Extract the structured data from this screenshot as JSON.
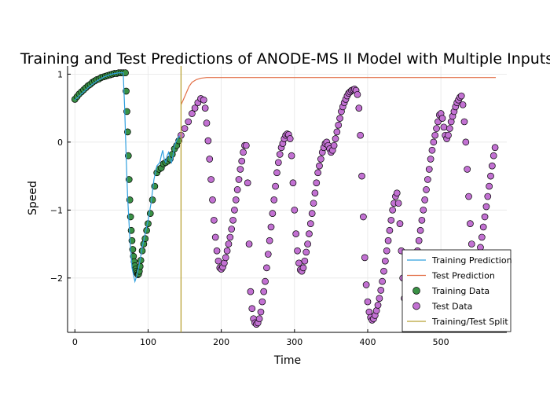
{
  "chart_data": {
    "type": "scatter",
    "title": "Training and Test Predictions of ANODE-MS II Model with Multiple Inputs",
    "xlabel": "Time",
    "ylabel": "Speed",
    "xlim": [
      -10,
      590
    ],
    "ylim": [
      -2.8,
      1.12
    ],
    "xticks": [
      0,
      100,
      200,
      300,
      400,
      500
    ],
    "yticks": [
      -2,
      -1,
      0,
      1
    ],
    "xtick_labels": [
      "0",
      "100",
      "200",
      "300",
      "400",
      "500"
    ],
    "ytick_labels": [
      "−2",
      "−1",
      "0",
      "1"
    ],
    "grid": true,
    "legend_position": "bottom-right",
    "colors": {
      "training_prediction": "#2f9fde",
      "test_prediction": "#e26f46",
      "training_data": "#3a9145",
      "test_data": "#c271d2",
      "split": "#b8a234"
    },
    "legend": [
      {
        "key": "training_prediction",
        "label": "Training Prediction",
        "kind": "line"
      },
      {
        "key": "test_prediction",
        "label": "Test Prediction",
        "kind": "line"
      },
      {
        "key": "training_data",
        "label": "Training Data",
        "kind": "marker"
      },
      {
        "key": "test_data",
        "label": "Test Data",
        "kind": "marker"
      },
      {
        "key": "split",
        "label": "Training/Test Split",
        "kind": "line"
      }
    ],
    "split_x": 145,
    "training_prediction": {
      "x": [
        0,
        10,
        20,
        30,
        40,
        50,
        60,
        66,
        68,
        70,
        72,
        75,
        78,
        82,
        85,
        88,
        92,
        96,
        100,
        104,
        108,
        112,
        116,
        118,
        120,
        122,
        124,
        126,
        128,
        130,
        132,
        134,
        136,
        138,
        140,
        142,
        145
      ],
      "y": [
        0.62,
        0.72,
        0.82,
        0.9,
        0.96,
        1.0,
        1.02,
        1.02,
        0.5,
        -0.2,
        -0.8,
        -1.4,
        -1.85,
        -2.05,
        -1.95,
        -1.8,
        -1.55,
        -1.35,
        -1.15,
        -0.9,
        -0.55,
        -0.35,
        -0.3,
        -0.2,
        -0.12,
        -0.25,
        -0.3,
        -0.2,
        -0.15,
        -0.25,
        -0.3,
        -0.2,
        -0.05,
        0.0,
        0.05,
        0.08,
        0.1
      ]
    },
    "test_prediction": {
      "x": [
        145,
        148,
        152,
        156,
        160,
        166,
        172,
        180,
        200,
        300,
        400,
        500,
        575
      ],
      "y": [
        0.55,
        0.62,
        0.72,
        0.82,
        0.88,
        0.92,
        0.94,
        0.95,
        0.95,
        0.95,
        0.95,
        0.95,
        0.95
      ]
    },
    "training_data": {
      "x": [
        0,
        3,
        6,
        9,
        12,
        15,
        18,
        21,
        24,
        27,
        30,
        33,
        36,
        39,
        42,
        45,
        48,
        51,
        54,
        57,
        60,
        63,
        66,
        69,
        70,
        71,
        72,
        73,
        74,
        75,
        76,
        77,
        78,
        79,
        80,
        81,
        82,
        83,
        84,
        85,
        86,
        87,
        88,
        89,
        90,
        92,
        94,
        96,
        98,
        100,
        103,
        106,
        109,
        112,
        115,
        118,
        121,
        124,
        127,
        130,
        133,
        136,
        139,
        142
      ],
      "y": [
        0.63,
        0.67,
        0.71,
        0.74,
        0.77,
        0.8,
        0.83,
        0.85,
        0.88,
        0.9,
        0.92,
        0.93,
        0.95,
        0.96,
        0.97,
        0.98,
        0.99,
        1.0,
        1.01,
        1.01,
        1.02,
        1.02,
        1.02,
        1.02,
        0.75,
        0.45,
        0.15,
        -0.2,
        -0.55,
        -0.85,
        -1.1,
        -1.3,
        -1.45,
        -1.58,
        -1.68,
        -1.76,
        -1.82,
        -1.87,
        -1.9,
        -1.93,
        -1.95,
        -1.94,
        -1.9,
        -1.83,
        -1.74,
        -1.6,
        -1.5,
        -1.42,
        -1.3,
        -1.2,
        -1.05,
        -0.85,
        -0.65,
        -0.45,
        -0.4,
        -0.38,
        -0.32,
        -0.3,
        -0.28,
        -0.25,
        -0.18,
        -0.1,
        -0.05,
        0.02
      ]
    },
    "test_data": {
      "x": [
        145,
        150,
        155,
        160,
        164,
        168,
        172,
        176,
        178,
        180,
        182,
        184,
        186,
        188,
        190,
        192,
        194,
        196,
        198,
        200,
        202,
        204,
        206,
        208,
        210,
        212,
        214,
        216,
        218,
        220,
        222,
        224,
        226,
        228,
        230,
        232,
        234,
        236,
        238,
        240,
        242,
        244,
        246,
        248,
        250,
        252,
        254,
        256,
        258,
        260,
        262,
        264,
        266,
        268,
        270,
        272,
        274,
        276,
        278,
        280,
        282,
        284,
        286,
        288,
        290,
        292,
        294,
        296,
        298,
        300,
        302,
        304,
        306,
        308,
        310,
        312,
        314,
        316,
        318,
        320,
        322,
        324,
        326,
        328,
        330,
        332,
        334,
        336,
        338,
        340,
        342,
        344,
        346,
        348,
        350,
        352,
        354,
        356,
        358,
        360,
        362,
        364,
        366,
        368,
        370,
        372,
        374,
        376,
        378,
        380,
        382,
        384,
        386,
        388,
        390,
        392,
        394,
        396,
        398,
        400,
        402,
        404,
        406,
        408,
        410,
        412,
        414,
        416,
        418,
        420,
        422,
        424,
        426,
        428,
        430,
        432,
        434,
        436,
        438,
        440,
        442,
        444,
        446,
        448,
        450,
        452,
        454,
        456,
        458,
        460,
        462,
        464,
        466,
        468,
        470,
        472,
        474,
        476,
        478,
        480,
        482,
        484,
        486,
        488,
        490,
        492,
        494,
        496,
        498,
        500,
        502,
        504,
        506,
        508,
        510,
        512,
        514,
        516,
        518,
        520,
        522,
        524,
        526,
        528,
        530,
        532,
        534,
        536,
        538,
        540,
        542,
        544,
        546,
        548,
        550,
        552,
        554,
        556,
        558,
        560,
        562,
        564,
        566,
        568,
        570,
        572,
        574
      ],
      "y": [
        0.1,
        0.2,
        0.3,
        0.42,
        0.5,
        0.58,
        0.64,
        0.62,
        0.5,
        0.28,
        0.02,
        -0.25,
        -0.55,
        -0.85,
        -1.15,
        -1.4,
        -1.6,
        -1.75,
        -1.85,
        -1.87,
        -1.84,
        -1.78,
        -1.7,
        -1.6,
        -1.5,
        -1.4,
        -1.28,
        -1.15,
        -1.0,
        -0.85,
        -0.7,
        -0.55,
        -0.4,
        -0.28,
        -0.15,
        -0.05,
        -0.05,
        -0.6,
        -1.5,
        -2.2,
        -2.45,
        -2.6,
        -2.66,
        -2.68,
        -2.66,
        -2.6,
        -2.5,
        -2.35,
        -2.2,
        -2.05,
        -1.85,
        -1.65,
        -1.45,
        -1.25,
        -1.05,
        -0.85,
        -0.65,
        -0.45,
        -0.3,
        -0.18,
        -0.08,
        -0.02,
        0.05,
        0.1,
        0.12,
        0.11,
        0.05,
        -0.2,
        -0.6,
        -1.0,
        -1.35,
        -1.6,
        -1.78,
        -1.88,
        -1.9,
        -1.85,
        -1.75,
        -1.62,
        -1.5,
        -1.35,
        -1.2,
        -1.05,
        -0.9,
        -0.75,
        -0.6,
        -0.45,
        -0.35,
        -0.25,
        -0.15,
        -0.08,
        -0.02,
        0.0,
        -0.05,
        -0.1,
        -0.15,
        -0.12,
        -0.05,
        0.05,
        0.15,
        0.25,
        0.35,
        0.45,
        0.52,
        0.58,
        0.63,
        0.68,
        0.72,
        0.74,
        0.76,
        0.77,
        0.78,
        0.76,
        0.7,
        0.5,
        0.1,
        -0.5,
        -1.1,
        -1.7,
        -2.1,
        -2.35,
        -2.5,
        -2.58,
        -2.62,
        -2.6,
        -2.55,
        -2.48,
        -2.4,
        -2.3,
        -2.18,
        -2.05,
        -1.9,
        -1.75,
        -1.6,
        -1.45,
        -1.3,
        -1.15,
        -1.0,
        -0.9,
        -0.8,
        -0.75,
        -0.9,
        -1.2,
        -1.6,
        -2.0,
        -2.3,
        -2.45,
        -2.5,
        -2.45,
        -2.35,
        -2.2,
        -2.05,
        -1.9,
        -1.75,
        -1.6,
        -1.45,
        -1.3,
        -1.15,
        -1.0,
        -0.85,
        -0.7,
        -0.55,
        -0.4,
        -0.25,
        -0.12,
        0.0,
        0.1,
        0.2,
        0.3,
        0.4,
        0.42,
        0.35,
        0.22,
        0.1,
        0.05,
        0.1,
        0.2,
        0.3,
        0.38,
        0.45,
        0.52,
        0.58,
        0.62,
        0.66,
        0.68,
        0.55,
        0.3,
        0.0,
        -0.4,
        -0.8,
        -1.2,
        -1.5,
        -1.7,
        -1.8,
        -1.85,
        -1.8,
        -1.7,
        -1.55,
        -1.4,
        -1.25,
        -1.1,
        -0.95,
        -0.8,
        -0.65,
        -0.5,
        -0.35,
        -0.2,
        -0.08
      ]
    }
  }
}
